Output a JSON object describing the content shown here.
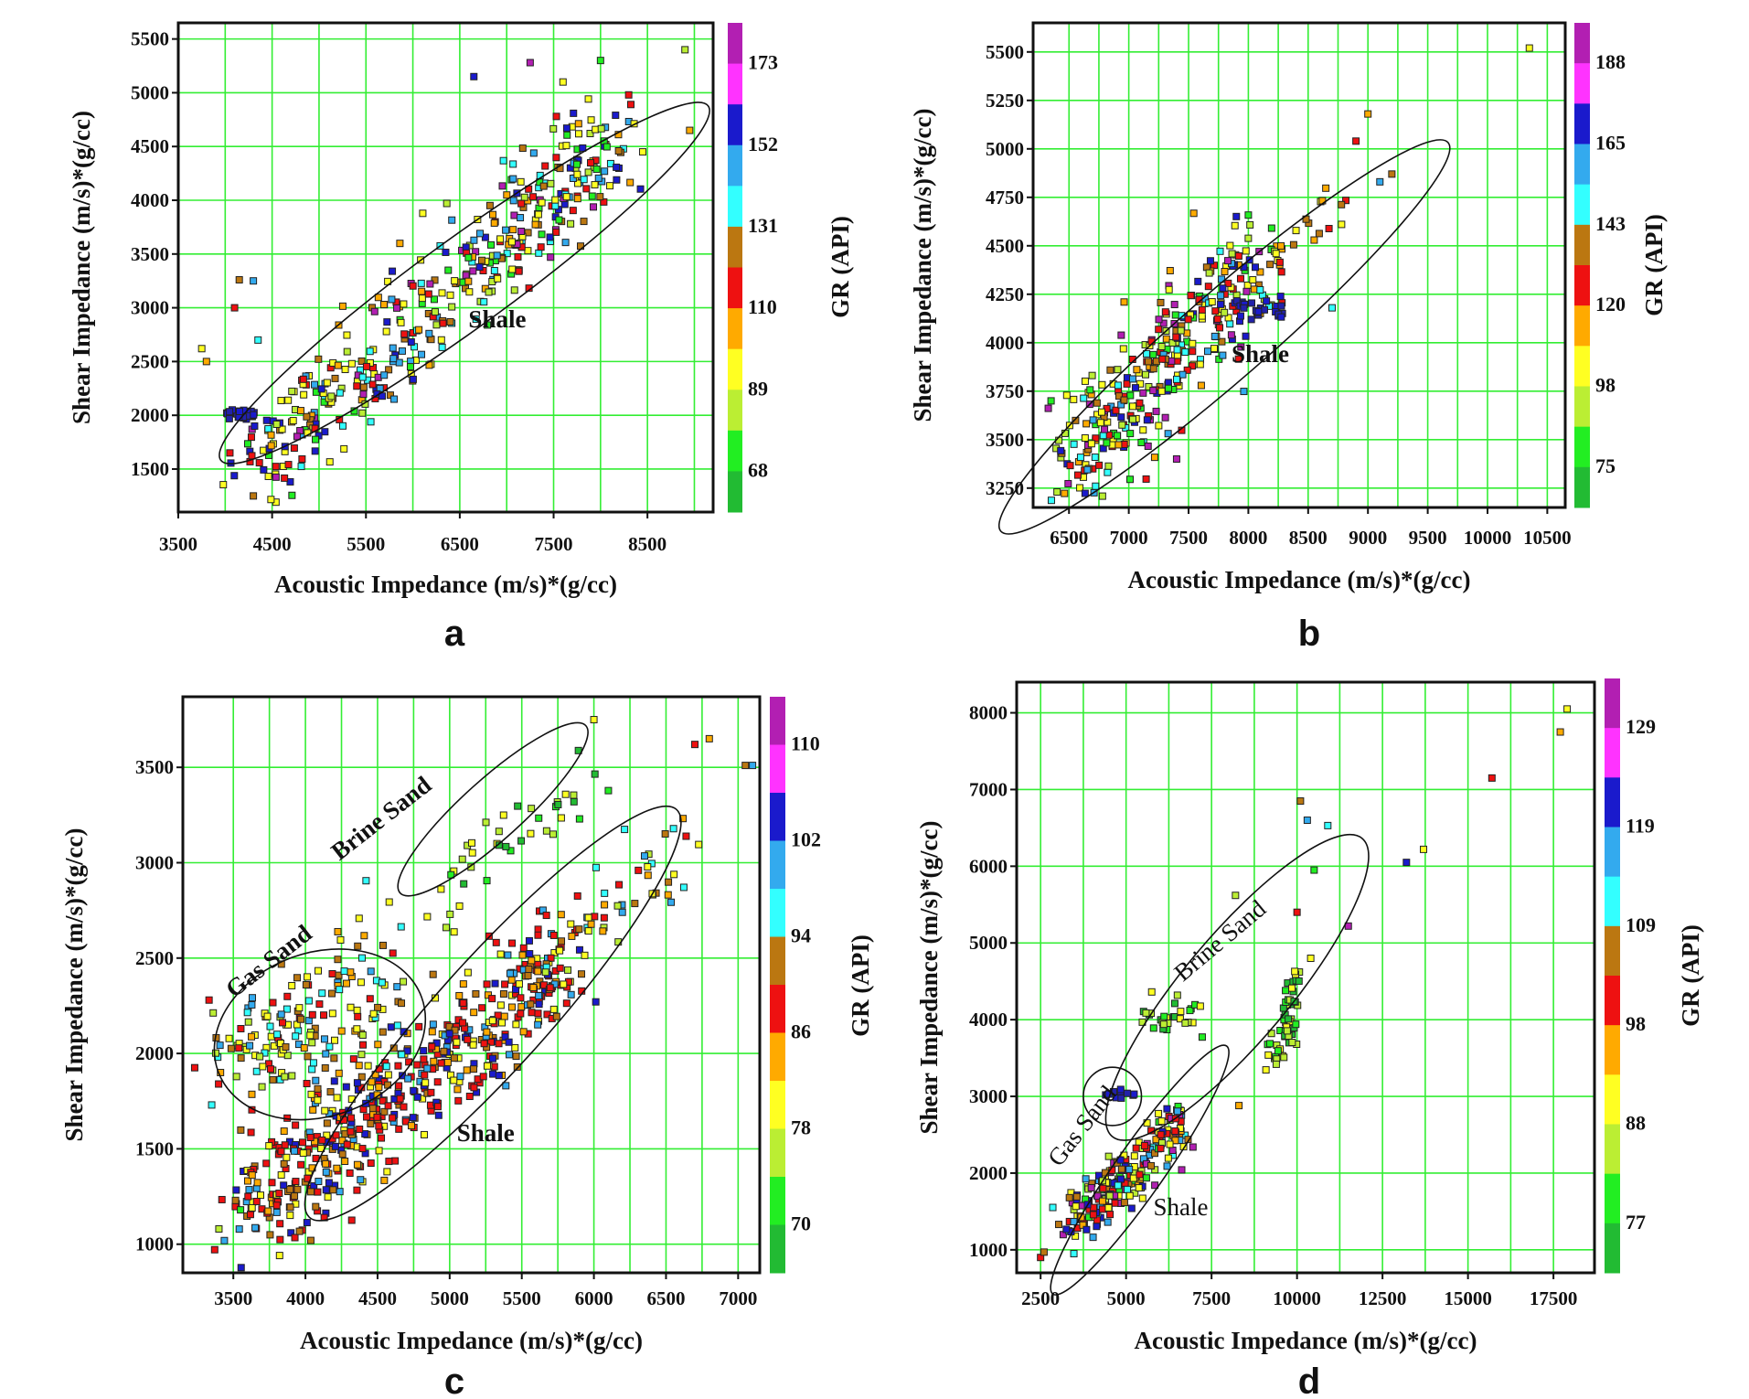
{
  "colors": {
    "grid": "#33ee33",
    "frame": "#111111",
    "ellipse": "#111111",
    "marker_edge": "#222222"
  },
  "chart_data": [
    {
      "panel": "a",
      "type": "scatter",
      "xlabel": "Acoustic Impedance (m/s)*(g/cc)",
      "ylabel": "Shear Impedance (m/s)*(g/cc)",
      "xlim": [
        3500,
        9200
      ],
      "ylim": [
        1100,
        5650
      ],
      "xticks": [
        3500,
        4500,
        5500,
        6500,
        7500,
        8500
      ],
      "yticks": [
        1500,
        2000,
        2500,
        3000,
        3500,
        4000,
        4500,
        5000,
        5500
      ],
      "colorbar_label": "GR (API)",
      "colorbar_ticks": [
        "173",
        "152",
        "131",
        "110",
        "89",
        "68"
      ],
      "colorbar_colors": [
        "#b21fb2",
        "#ff33ff",
        "#1a1acc",
        "#33aaee",
        "#33ffff",
        "#bb7711",
        "#ee1111",
        "#ffaa00",
        "#ffff22",
        "#bbee33",
        "#22ee22",
        "#22bb33"
      ],
      "annotations": [
        {
          "text": "Shale",
          "x": 6900,
          "y": 2820
        }
      ],
      "ellipses": [
        {
          "cx": 6550,
          "cy": 3230,
          "rx": 3050,
          "ry": 430,
          "angle_deg": 36
        }
      ],
      "clusters": [
        {
          "x0": 4300,
          "y0": 1500,
          "x1": 8200,
          "y1": 4600,
          "spread": 240,
          "n": 420,
          "colors": "mixed"
        },
        {
          "x0": 4000,
          "y0": 2000,
          "x1": 4300,
          "y1": 2020,
          "spread": 25,
          "n": 30,
          "colors": "blue"
        }
      ],
      "outliers": [
        [
          3750,
          2620
        ],
        [
          3800,
          2500
        ],
        [
          4100,
          3000
        ],
        [
          4150,
          3260
        ],
        [
          4300,
          3250
        ],
        [
          4350,
          2700
        ],
        [
          8900,
          5400
        ],
        [
          8000,
          5300
        ],
        [
          7250,
          5280
        ],
        [
          6650,
          5150
        ],
        [
          7600,
          5100
        ],
        [
          8300,
          4980
        ],
        [
          8450,
          4450
        ],
        [
          8950,
          4650
        ],
        [
          4050,
          1650
        ],
        [
          4300,
          1250
        ],
        [
          5800,
          2150
        ]
      ]
    },
    {
      "panel": "b",
      "type": "scatter",
      "xlabel": "Acoustic Impedance (m/s)*(g/cc)",
      "ylabel": "Shear Impedance (m/s)*(g/cc)",
      "xlim": [
        6200,
        10650
      ],
      "ylim": [
        3150,
        5650
      ],
      "xticks": [
        6500,
        7000,
        7500,
        8000,
        8500,
        9000,
        9500,
        10000,
        10500
      ],
      "yticks": [
        3250,
        3500,
        3750,
        4000,
        4250,
        4500,
        4750,
        5000,
        5250,
        5500
      ],
      "colorbar_label": "GR (API)",
      "colorbar_ticks": [
        "188",
        "165",
        "143",
        "120",
        "98",
        "75"
      ],
      "colorbar_colors": [
        "#b21fb2",
        "#ff33ff",
        "#1a1acc",
        "#33aaee",
        "#33ffff",
        "#bb7711",
        "#ee1111",
        "#ffaa00",
        "#ffff22",
        "#bbee33",
        "#22ee22",
        "#22bb33"
      ],
      "annotations": [
        {
          "text": "Shale",
          "x": 8100,
          "y": 3900
        }
      ],
      "ellipses": [
        {
          "cx": 7800,
          "cy": 4030,
          "rx": 1900,
          "ry": 260,
          "angle_deg": 41
        }
      ],
      "clusters": [
        {
          "x0": 6500,
          "y0": 3350,
          "x1": 8100,
          "y1": 4450,
          "spread": 150,
          "n": 320,
          "colors": "mixed"
        },
        {
          "x0": 7900,
          "y0": 4200,
          "x1": 8300,
          "y1": 4150,
          "spread": 25,
          "n": 25,
          "colors": "blue"
        },
        {
          "x0": 8200,
          "y0": 4450,
          "x1": 8800,
          "y1": 4700,
          "spread": 60,
          "n": 20,
          "colors": "warm"
        }
      ],
      "outliers": [
        [
          10350,
          5520
        ],
        [
          9000,
          5180
        ],
        [
          8900,
          5040
        ],
        [
          9200,
          4870
        ],
        [
          9100,
          4830
        ],
        [
          8700,
          4180
        ],
        [
          6400,
          3230
        ],
        [
          6350,
          3700
        ],
        [
          7400,
          3400
        ]
      ]
    },
    {
      "panel": "c",
      "type": "scatter",
      "xlabel": "Acoustic Impedance (m/s)*(g/cc)",
      "ylabel": "Shear Impedance (m/s)*(g/cc)",
      "xlim": [
        3150,
        7150
      ],
      "ylim": [
        850,
        3870
      ],
      "xticks": [
        3500,
        4000,
        4500,
        5000,
        5500,
        6000,
        6500,
        7000
      ],
      "yticks": [
        1000,
        1500,
        2000,
        2500,
        3000,
        3500
      ],
      "colorbar_label": "GR (API)",
      "colorbar_ticks": [
        "110",
        "102",
        "94",
        "86",
        "78",
        "70"
      ],
      "colorbar_colors": [
        "#b21fb2",
        "#ff33ff",
        "#1a1acc",
        "#33aaee",
        "#33ffff",
        "#bb7711",
        "#ee1111",
        "#ffaa00",
        "#ffff22",
        "#bbee33",
        "#22ee22",
        "#22bb33"
      ],
      "annotations": [
        {
          "text": "Brine Sand",
          "x": 4560,
          "y": 3200,
          "rotate": -38
        },
        {
          "text": "Gas Sand",
          "x": 3780,
          "y": 2450,
          "rotate": -38
        },
        {
          "text": "Shale",
          "x": 5250,
          "y": 1540
        }
      ],
      "ellipses": [
        {
          "cx": 5300,
          "cy": 2210,
          "rx": 1600,
          "ry": 330,
          "angle_deg": 48
        },
        {
          "cx": 4100,
          "cy": 2100,
          "rx": 720,
          "ry": 440,
          "angle_deg": 20
        },
        {
          "cx": 5300,
          "cy": 3280,
          "rx": 750,
          "ry": 175,
          "angle_deg": 42
        }
      ],
      "clusters": [
        {
          "x0": 3600,
          "y0": 1150,
          "x1": 5800,
          "y1": 2500,
          "spread": 160,
          "n": 520,
          "colors": "red"
        },
        {
          "x0": 3500,
          "y0": 2000,
          "x1": 4600,
          "y1": 2350,
          "spread": 170,
          "n": 160,
          "colors": "yellow"
        },
        {
          "x0": 4900,
          "y0": 2800,
          "x1": 6000,
          "y1": 3500,
          "spread": 100,
          "n": 40,
          "colors": "green"
        },
        {
          "x0": 5500,
          "y0": 2300,
          "x1": 6600,
          "y1": 3100,
          "spread": 120,
          "n": 60,
          "colors": "yellow"
        }
      ],
      "outliers": [
        [
          6000,
          3750
        ],
        [
          6800,
          3650
        ],
        [
          6700,
          3620
        ],
        [
          7050,
          3510
        ],
        [
          7100,
          3510
        ],
        [
          3350,
          1730
        ],
        [
          3400,
          1080
        ],
        [
          3550,
          1180
        ]
      ]
    },
    {
      "panel": "d",
      "type": "scatter",
      "xlabel": "Acoustic Impedance (m/s)*(g/cc)",
      "ylabel": "Shear Impedance (m/s)*(g/cc)",
      "xlim": [
        1800,
        18700
      ],
      "ylim": [
        700,
        8400
      ],
      "xticks": [
        2500,
        5000,
        7500,
        10000,
        12500,
        15000,
        17500
      ],
      "yticks": [
        1000,
        2000,
        3000,
        4000,
        5000,
        6000,
        7000,
        8000
      ],
      "colorbar_label": "GR (API)",
      "colorbar_ticks": [
        "129",
        "119",
        "109",
        "98",
        "88",
        "77"
      ],
      "colorbar_colors": [
        "#b21fb2",
        "#ff33ff",
        "#1a1acc",
        "#33aaee",
        "#33ffff",
        "#bb7711",
        "#ee1111",
        "#ffaa00",
        "#ffff22",
        "#bbee33",
        "#22ee22",
        "#22bb33"
      ],
      "annotations": [
        {
          "text": "Brine Sand",
          "x": 7900,
          "y": 4950,
          "rotate": -40
        },
        {
          "text": "Gas Sand",
          "x": 3900,
          "y": 2550,
          "rotate": -52
        },
        {
          "text": "Shale",
          "x": 6600,
          "y": 1450
        }
      ],
      "ellipses": [
        {
          "cx": 8250,
          "cy": 4420,
          "rx": 3100,
          "ry": 950,
          "angle_deg": 50
        },
        {
          "cx": 4600,
          "cy": 3000,
          "rx": 850,
          "ry": 380,
          "angle_deg": 0
        },
        {
          "cx": 5400,
          "cy": 2040,
          "rx": 2300,
          "ry": 470,
          "angle_deg": 55
        }
      ],
      "clusters": [
        {
          "x0": 3300,
          "y0": 1300,
          "x1": 6800,
          "y1": 2700,
          "spread": 180,
          "n": 220,
          "colors": "mixed"
        },
        {
          "x0": 9300,
          "y0": 3400,
          "x1": 10000,
          "y1": 4450,
          "spread": 120,
          "n": 60,
          "colors": "green"
        },
        {
          "x0": 5300,
          "y0": 3900,
          "x1": 7200,
          "y1": 4100,
          "spread": 150,
          "n": 30,
          "colors": "green"
        },
        {
          "x0": 4200,
          "y0": 3000,
          "x1": 5400,
          "y1": 3050,
          "spread": 40,
          "n": 10,
          "colors": "blue"
        }
      ],
      "outliers": [
        [
          17900,
          8050
        ],
        [
          17700,
          7750
        ],
        [
          15700,
          7150
        ],
        [
          10100,
          6850
        ],
        [
          10300,
          6600
        ],
        [
          10900,
          6530
        ],
        [
          8200,
          5620
        ],
        [
          10500,
          5950
        ],
        [
          11500,
          5220
        ],
        [
          13200,
          6050
        ],
        [
          13700,
          6220
        ],
        [
          10000,
          5400
        ],
        [
          10400,
          4800
        ],
        [
          8300,
          2880
        ],
        [
          2500,
          900
        ],
        [
          2600,
          970
        ]
      ]
    }
  ]
}
